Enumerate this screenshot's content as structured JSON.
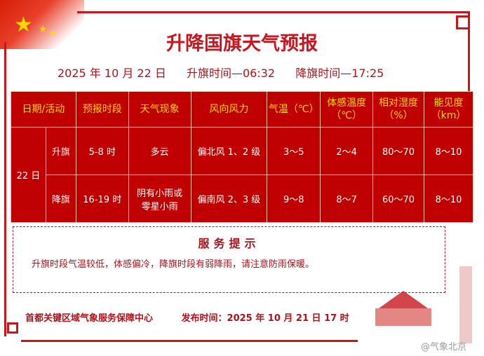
{
  "title": "升降国旗天气预报",
  "subtitle": {
    "date": "2025 年 10 月 22 日",
    "raise": "升旗时间—06:32",
    "lower": "降旗时间—17:25"
  },
  "table": {
    "headers": [
      "日期/活动",
      "预报时段",
      "天气现象",
      "风向风力",
      "气温（℃）",
      "体感温度（℃）",
      "相对湿度（%）",
      "能见度（km）"
    ],
    "date": "22 日",
    "rows": [
      {
        "activity": "升旗",
        "period": "5-8 时",
        "weather": "多云",
        "wind": "偏北风 1、2 级",
        "temp": "3～5",
        "feel": "2～4",
        "humidity": "80～70",
        "visibility": "8～10"
      },
      {
        "activity": "降旗",
        "period": "16-19 时",
        "weather": "阴有小雨或零星小雨",
        "wind": "偏南风 2、3 级",
        "temp": "9～8",
        "feel": "8～7",
        "humidity": "60～70",
        "visibility": "8～10"
      }
    ]
  },
  "service": {
    "title": "服务提示",
    "text": "升旗时段气温较低，体感偏冷，降旗时段有弱降雨，请注意防雨保暖。"
  },
  "footer": {
    "org": "首都关键区域气象服务保障中心",
    "publish": "发布时间：2025 年 10 月 21 日 17 时"
  },
  "watermark": "@气象北京",
  "colors": {
    "red": "#c00000",
    "header_text": "#ffd800",
    "title": "#c8161d"
  }
}
